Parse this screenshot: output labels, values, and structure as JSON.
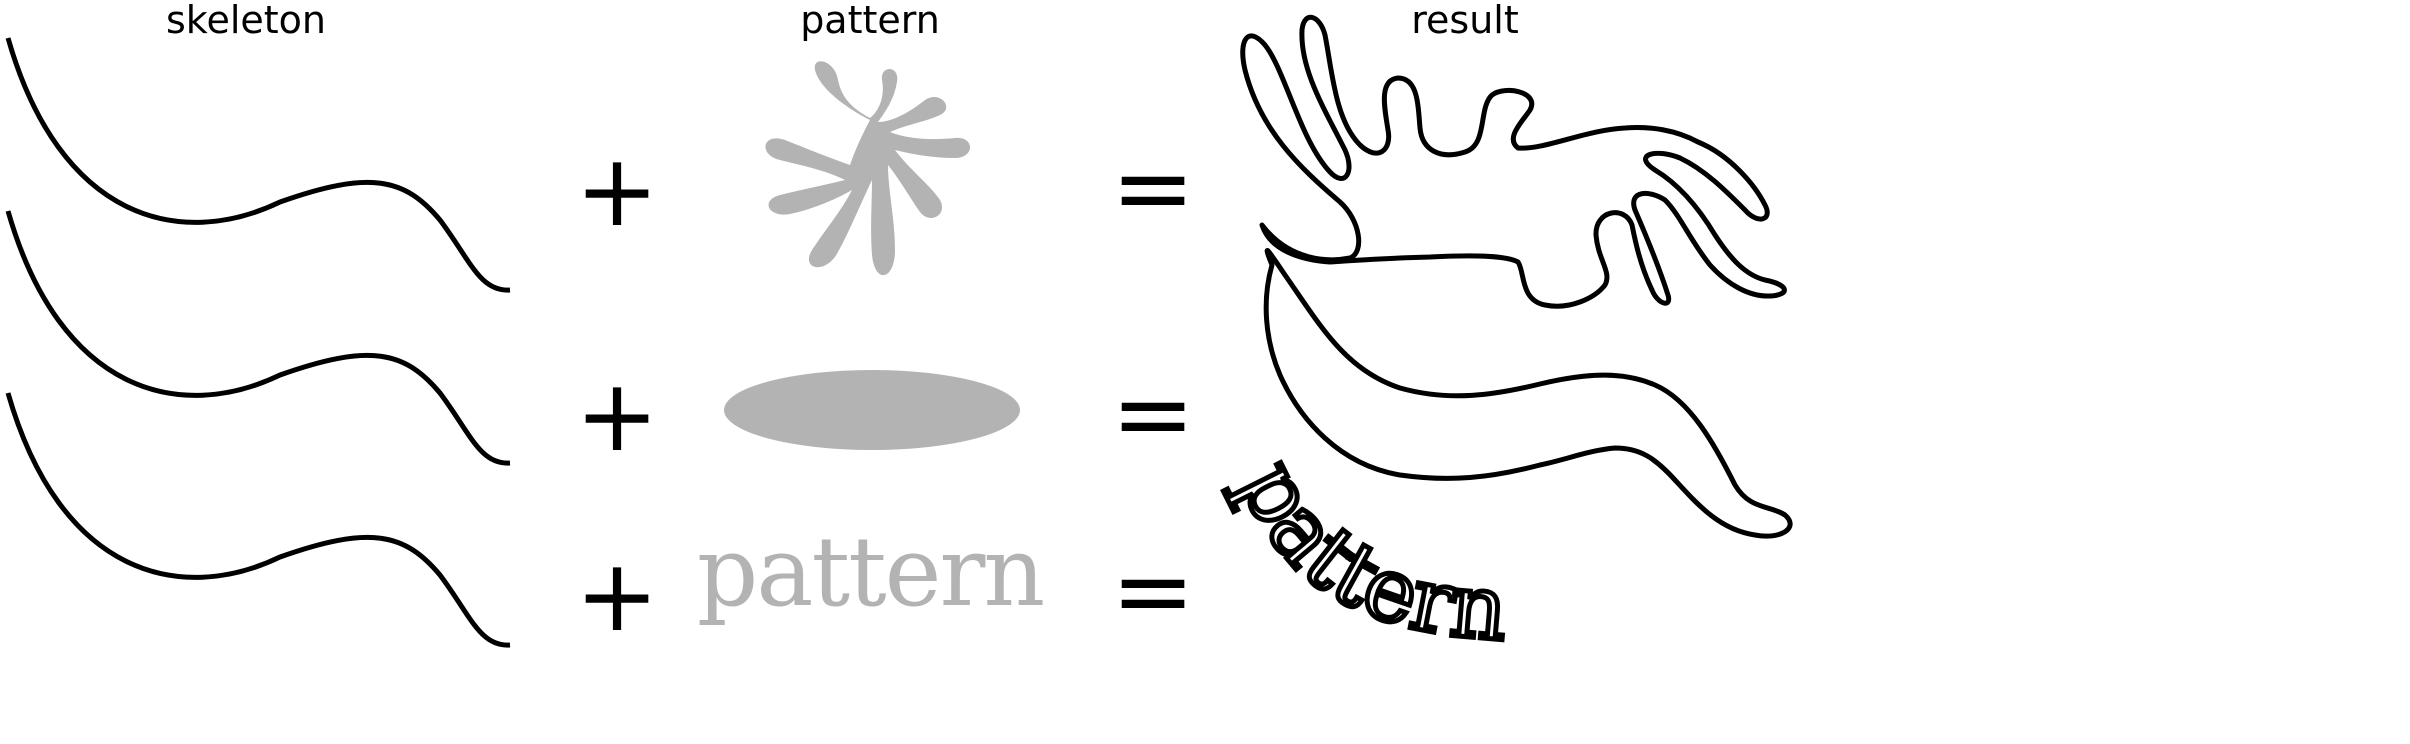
{
  "headers": {
    "skeleton": "skeleton",
    "pattern": "pattern",
    "result": "result"
  },
  "operators": {
    "plus": "+",
    "equals": "="
  },
  "rows": [
    {
      "pattern_kind": "splat"
    },
    {
      "pattern_kind": "ellipse"
    },
    {
      "pattern_kind": "text",
      "pattern_text": "pattern"
    }
  ],
  "colors": {
    "pattern_fill": "#b3b3b3",
    "stroke": "#000000",
    "background": "#ffffff"
  }
}
